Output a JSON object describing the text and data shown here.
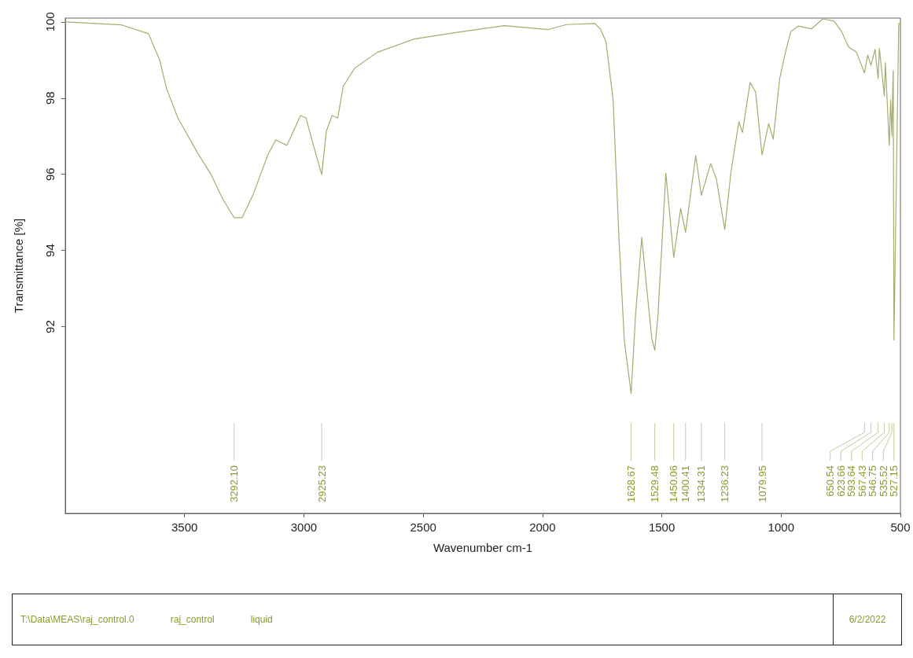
{
  "chart_data": {
    "type": "line",
    "xlabel": "Wavenumber cm-1",
    "ylabel": "Transmittance [%]",
    "xlim": [
      4000,
      500
    ],
    "xticks": [
      3500,
      3000,
      2500,
      2000,
      1500,
      1000,
      500
    ],
    "ylim": [
      87.1,
      100.1
    ],
    "yticks": [
      92,
      94,
      96,
      98,
      100
    ],
    "grid": false,
    "series": [
      {
        "color": "#a9aa6e",
        "x": [
          4000,
          3764,
          3651,
          3604,
          3575,
          3528,
          3448,
          3387,
          3340,
          3292.1,
          3259,
          3212,
          3151,
          3118,
          3071,
          3014,
          2991,
          2962,
          2925.23,
          2906,
          2882,
          2858,
          2835,
          2788,
          2693,
          2538,
          2363,
          2160,
          1976,
          1899,
          1781,
          1758,
          1734,
          1704,
          1680,
          1657,
          1628.67,
          1610,
          1584,
          1563,
          1542,
          1529.48,
          1516,
          1483,
          1450.06,
          1421,
          1400.41,
          1358,
          1334.31,
          1295,
          1271,
          1236.23,
          1210,
          1177,
          1162,
          1130,
          1107,
          1079.95,
          1052,
          1033,
          1006,
          982,
          959,
          928,
          872,
          825,
          778,
          747,
          717,
          684,
          650.54,
          637,
          623.66,
          606,
          593.64,
          588,
          567.43,
          563,
          546.75,
          541,
          535.52,
          532,
          530,
          527.15,
          507,
          500
        ],
        "values": [
          100.0,
          99.92,
          99.69,
          98.99,
          98.24,
          97.48,
          96.59,
          95.97,
          95.35,
          94.86,
          94.86,
          95.48,
          96.51,
          96.9,
          96.76,
          97.54,
          97.48,
          96.8,
          95.99,
          97.13,
          97.54,
          97.48,
          98.31,
          98.78,
          99.2,
          99.55,
          99.72,
          99.9,
          99.8,
          99.93,
          99.96,
          99.82,
          99.48,
          97.95,
          94.38,
          91.63,
          90.25,
          92.31,
          94.34,
          93.0,
          91.69,
          91.38,
          92.31,
          96.03,
          93.82,
          95.1,
          94.48,
          96.49,
          95.45,
          96.28,
          95.87,
          94.55,
          96.07,
          97.38,
          97.1,
          98.41,
          98.16,
          96.51,
          97.33,
          96.92,
          98.51,
          99.2,
          99.75,
          99.89,
          99.82,
          100.08,
          100.02,
          99.75,
          99.34,
          99.2,
          98.66,
          99.13,
          98.86,
          99.28,
          98.51,
          99.3,
          98.06,
          98.93,
          96.76,
          97.95,
          97.0,
          98.31,
          98.72,
          91.65,
          99.96,
          99.96
        ]
      }
    ],
    "annotations": [
      {
        "text": "3292.10",
        "x": 3292.1
      },
      {
        "text": "2925.23",
        "x": 2925.23
      },
      {
        "text": "1628.67",
        "x": 1628.67
      },
      {
        "text": "1529.48",
        "x": 1529.48
      },
      {
        "text": "1450.06",
        "x": 1450.06
      },
      {
        "text": "1400.41",
        "x": 1400.41
      },
      {
        "text": "1334.31",
        "x": 1334.31
      },
      {
        "text": "1236.23",
        "x": 1236.23
      },
      {
        "text": "1079.95",
        "x": 1079.95
      },
      {
        "text": "650.54",
        "x": 650.54
      },
      {
        "text": "623.66",
        "x": 623.66
      },
      {
        "text": "593.64",
        "x": 593.64
      },
      {
        "text": "567.43",
        "x": 567.43
      },
      {
        "text": "546.75",
        "x": 546.75
      },
      {
        "text": "535.52",
        "x": 535.52
      },
      {
        "text": "527.15",
        "x": 527.15
      },
      "T:\\Data\\MEAS\\raj_control.0",
      "raj_control",
      "liquid",
      "6/2/2022"
    ]
  }
}
